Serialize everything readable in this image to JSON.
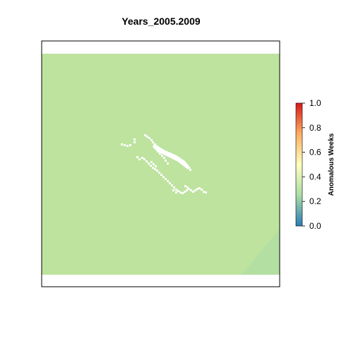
{
  "chart_data": {
    "type": "heatmap",
    "title": "Years_2005.2009",
    "legend": {
      "label": "Anomalous Weeks",
      "range": [
        0.0,
        1.0
      ],
      "ticks": [
        "0.0",
        "0.2",
        "0.4",
        "0.6",
        "0.8",
        "1.0"
      ],
      "tick_values": [
        0.0,
        0.2,
        0.4,
        0.6,
        0.8,
        1.0
      ],
      "placement": "right",
      "colors": [
        "#2c7bb6",
        "#abdda4",
        "#ffffbf",
        "#fdae61",
        "#d7191c"
      ]
    },
    "field": {
      "dominant_value": 0.3,
      "dominant_color": "#bde39f",
      "corner_value": 0.28,
      "corner_color": "#b4dfa2",
      "missing_color": "#ffffff"
    },
    "grid": false,
    "axes_ticks": false
  }
}
